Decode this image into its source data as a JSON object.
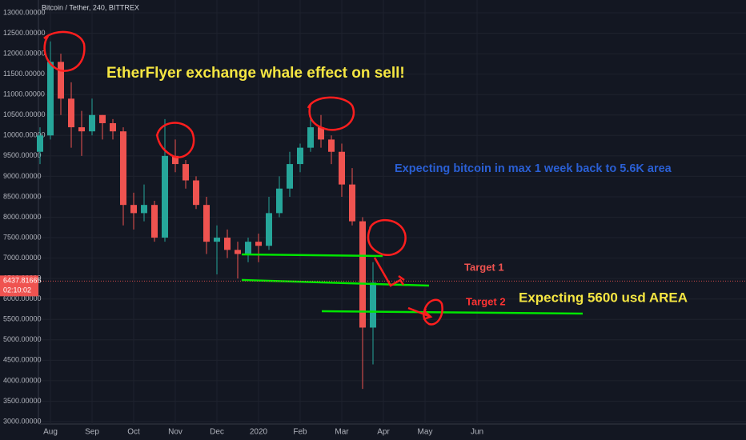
{
  "chart_data": {
    "type": "candlestick",
    "title": "Bitcoin / Tether, 240, BITTREX",
    "categories": [
      null,
      "Aug",
      null,
      null,
      null,
      "Sep",
      null,
      null,
      null,
      "Oct",
      null,
      null,
      null,
      "Nov",
      null,
      null,
      null,
      "Dec",
      null,
      null,
      null,
      "2020",
      null,
      null,
      null,
      "Feb",
      null,
      null,
      null,
      "Mar",
      null,
      null,
      null,
      "Apr",
      null,
      null,
      null,
      "May",
      null,
      null,
      null,
      null,
      "Jun",
      null
    ],
    "open": [
      9600,
      10000,
      11800,
      10900,
      10200,
      10100,
      10500,
      10300,
      10100,
      8300,
      8100,
      8300,
      7500,
      9500,
      9300,
      8900,
      8300,
      7400,
      7500,
      7200,
      7100,
      7400,
      7300,
      8100,
      8700,
      9300,
      9700,
      10200,
      9900,
      9600,
      8800,
      7900,
      5300,
      null,
      null,
      null,
      null,
      null,
      null,
      null,
      null,
      null,
      null,
      null
    ],
    "high": [
      10200,
      12300,
      12000,
      11300,
      10600,
      10900,
      10500,
      10400,
      10200,
      8600,
      8800,
      8400,
      10400,
      9900,
      9400,
      9000,
      8500,
      7800,
      7700,
      7400,
      7500,
      7600,
      8500,
      9000,
      9600,
      9800,
      10400,
      10500,
      10000,
      9800,
      9200,
      8000,
      6900,
      null,
      null,
      null,
      null,
      null,
      null,
      null,
      null,
      null,
      null,
      null
    ],
    "low": [
      9300,
      9900,
      10500,
      9700,
      9500,
      10000,
      9900,
      9900,
      7800,
      7700,
      7900,
      7400,
      7400,
      9100,
      8700,
      8200,
      7100,
      6600,
      7000,
      6500,
      6900,
      6900,
      7200,
      8000,
      8500,
      9100,
      9600,
      9700,
      9300,
      8500,
      7800,
      3800,
      4400,
      null,
      null,
      null,
      null,
      null,
      null,
      null,
      null,
      null,
      null,
      null
    ],
    "close": [
      10000,
      11800,
      10900,
      10200,
      10100,
      10500,
      10300,
      10100,
      8300,
      8100,
      8300,
      7500,
      9500,
      9300,
      8900,
      8300,
      7400,
      7500,
      7200,
      7100,
      7400,
      7300,
      8100,
      8700,
      9300,
      9700,
      10200,
      9900,
      9600,
      8800,
      7900,
      5300,
      6400,
      null,
      null,
      null,
      null,
      null,
      null,
      null,
      null,
      null,
      null,
      null
    ],
    "up_color": "#26a69a",
    "down_color": "#ef5350",
    "ylim": [
      3000,
      13000
    ],
    "yticks": [
      {
        "value": 3000,
        "label": "3000.00000"
      },
      {
        "value": 3500,
        "label": "3500.00000"
      },
      {
        "value": 4000,
        "label": "4000.00000"
      },
      {
        "value": 4500,
        "label": "4500.00000"
      },
      {
        "value": 5000,
        "label": "5000.00000"
      },
      {
        "value": 5500,
        "label": "5500.00000"
      },
      {
        "value": 6000,
        "label": "6000.00000"
      },
      {
        "value": 6500,
        "label": "6500.00000"
      },
      {
        "value": 7000,
        "label": "7000.00000"
      },
      {
        "value": 7500,
        "label": "7500.00000"
      },
      {
        "value": 8000,
        "label": "8000.00000"
      },
      {
        "value": 8500,
        "label": "8500.00000"
      },
      {
        "value": 9000,
        "label": "9000.00000"
      },
      {
        "value": 9500,
        "label": "9500.00000"
      },
      {
        "value": 10000,
        "label": "10000.00000"
      },
      {
        "value": 10500,
        "label": "10500.00000"
      },
      {
        "value": 11000,
        "label": "11000.00000"
      },
      {
        "value": 11500,
        "label": "11500.00000"
      },
      {
        "value": 12000,
        "label": "12000.00000"
      },
      {
        "value": 12500,
        "label": "12500.00000"
      },
      {
        "value": 13000,
        "label": "13000.00000"
      }
    ],
    "last_price": 6437.81665,
    "countdown": "02:10:02",
    "annotations": {
      "headline": "EtherFlyer exchange whale effect on sell!",
      "expectation": "Expecting bitcoin in max 1 week back to 5.6K area",
      "target_1": "Target 1",
      "target_2": "Target 2",
      "area": "Expecting 5600 usd AREA"
    }
  }
}
